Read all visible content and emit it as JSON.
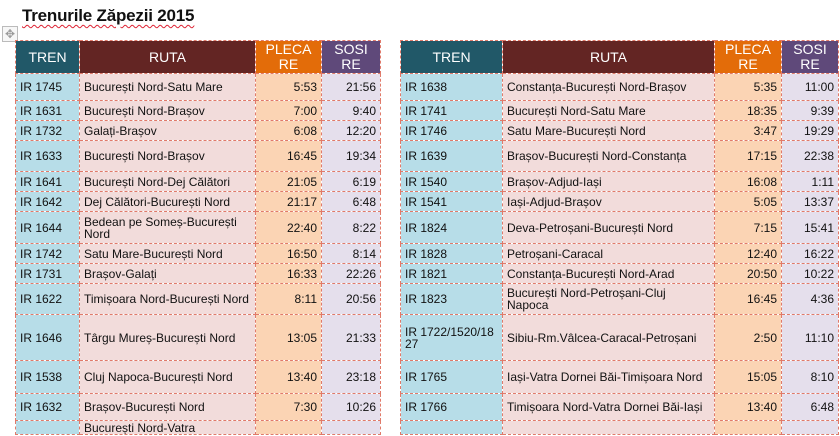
{
  "page": {
    "title": "Trenurile Zăpezii 2015"
  },
  "headers": {
    "tren": "TREN",
    "ruta": "RUTA",
    "pleca": "PLECA RE",
    "sosi": "SOSI RE"
  },
  "left": [
    {
      "tren": "IR 1745",
      "ruta": "București Nord-Satu Mare",
      "pleca": "5:53",
      "sosi": "21:56"
    },
    {
      "tren": "IR 1631",
      "ruta": "București Nord-Brașov",
      "pleca": "7:00",
      "sosi": "9:40"
    },
    {
      "tren": "IR 1732",
      "ruta": "Galați-Brașov",
      "pleca": "6:08",
      "sosi": "12:20"
    },
    {
      "tren": "IR 1633",
      "ruta": "București Nord-Brașov",
      "pleca": "16:45",
      "sosi": "19:34"
    },
    {
      "tren": "IR 1641",
      "ruta": "București Nord-Dej Călători",
      "pleca": "21:05",
      "sosi": "6:19"
    },
    {
      "tren": "IR 1642",
      "ruta": "Dej Călători-București Nord",
      "pleca": "21:17",
      "sosi": "6:48"
    },
    {
      "tren": "IR 1644",
      "ruta": "Bedean pe Someș-București Nord",
      "pleca": "22:40",
      "sosi": "8:22"
    },
    {
      "tren": "IR 1742",
      "ruta": "Satu Mare-București Nord",
      "pleca": "16:50",
      "sosi": "8:14"
    },
    {
      "tren": "IR 1731",
      "ruta": "Brașov-Galați",
      "pleca": "16:33",
      "sosi": "22:26"
    },
    {
      "tren": "IR 1622",
      "ruta": "Timișoara Nord-București Nord",
      "pleca": "8:11",
      "sosi": "20:56"
    },
    {
      "tren": "IR 1646",
      "ruta": "Târgu Mureș-București Nord",
      "pleca": "13:05",
      "sosi": "21:33"
    },
    {
      "tren": "IR 1538",
      "ruta": "Cluj Napoca-București Nord",
      "pleca": "13:40",
      "sosi": "23:18"
    },
    {
      "tren": "IR 1632",
      "ruta": "Brașov-București Nord",
      "pleca": "7:30",
      "sosi": "10:26"
    },
    {
      "tren": "",
      "ruta": "București Nord-Vatra",
      "pleca": "",
      "sosi": ""
    }
  ],
  "right": [
    {
      "tren": "IR 1638",
      "ruta": "Constanța-București Nord-Brașov",
      "pleca": "5:35",
      "sosi": "11:00"
    },
    {
      "tren": "IR 1741",
      "ruta": "București Nord-Satu Mare",
      "pleca": "18:35",
      "sosi": "9:39"
    },
    {
      "tren": "IR 1746",
      "ruta": "Satu Mare-București Nord",
      "pleca": "3:47",
      "sosi": "19:29"
    },
    {
      "tren": "IR 1639",
      "ruta": "Brașov-București Nord-Constanța",
      "pleca": "17:15",
      "sosi": "22:38"
    },
    {
      "tren": "IR 1540",
      "ruta": "Brașov-Adjud-Iași",
      "pleca": "16:08",
      "sosi": "1:11"
    },
    {
      "tren": "IR 1541",
      "ruta": "Iași-Adjud-Brașov",
      "pleca": "5:05",
      "sosi": "13:37"
    },
    {
      "tren": "IR 1824",
      "ruta": "Deva-Petroșani-București Nord",
      "pleca": "7:15",
      "sosi": "15:41"
    },
    {
      "tren": "IR 1828",
      "ruta": "Petroșani-Caracal",
      "pleca": "12:40",
      "sosi": "16:22"
    },
    {
      "tren": "IR 1821",
      "ruta": "Constanța-București Nord-Arad",
      "pleca": "20:50",
      "sosi": "10:22"
    },
    {
      "tren": "IR 1823",
      "ruta": "București Nord-Petroșani-Cluj Napoca",
      "pleca": "16:45",
      "sosi": "4:36"
    },
    {
      "tren": "IR 1722/1520/1827",
      "ruta": "Sibiu-Rm.Vâlcea-Caracal-Petroșani",
      "pleca": "2:50",
      "sosi": "11:10"
    },
    {
      "tren": "IR 1765",
      "ruta": "Iași-Vatra Dornei Băi-Timișoara Nord",
      "pleca": "15:05",
      "sosi": "8:10"
    },
    {
      "tren": "IR 1766",
      "ruta": "Timișoara Nord-Vatra Dornei Băi-Iași",
      "pleca": "13:40",
      "sosi": "6:48"
    },
    {
      "tren": "",
      "ruta": "",
      "pleca": "",
      "sosi": ""
    }
  ]
}
